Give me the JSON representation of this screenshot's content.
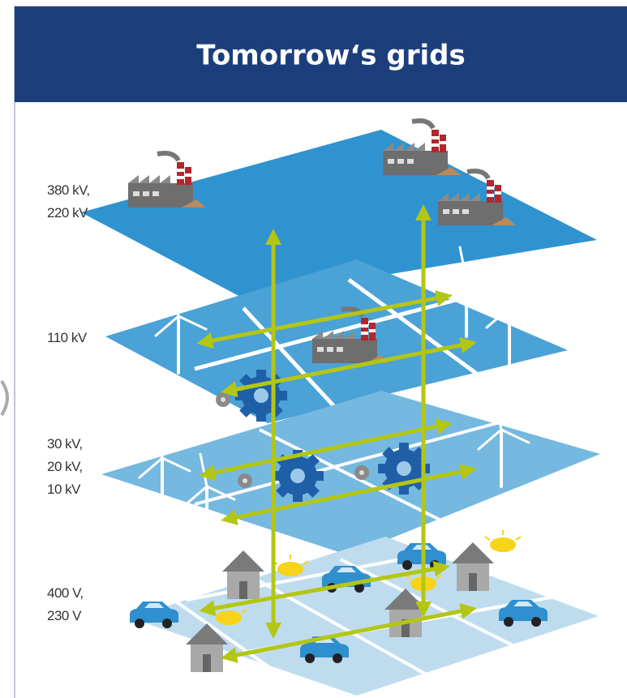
{
  "header": {
    "title": "Tomorrow‘s grids"
  },
  "layers": [
    {
      "label_lines": [
        "380 kV,",
        "220 kV"
      ]
    },
    {
      "label_lines": [
        "110 kV"
      ]
    },
    {
      "label_lines": [
        "30 kV,",
        "20 kV,",
        "10 kV"
      ]
    },
    {
      "label_lines": [
        "400 V,",
        "230 V"
      ]
    }
  ]
}
